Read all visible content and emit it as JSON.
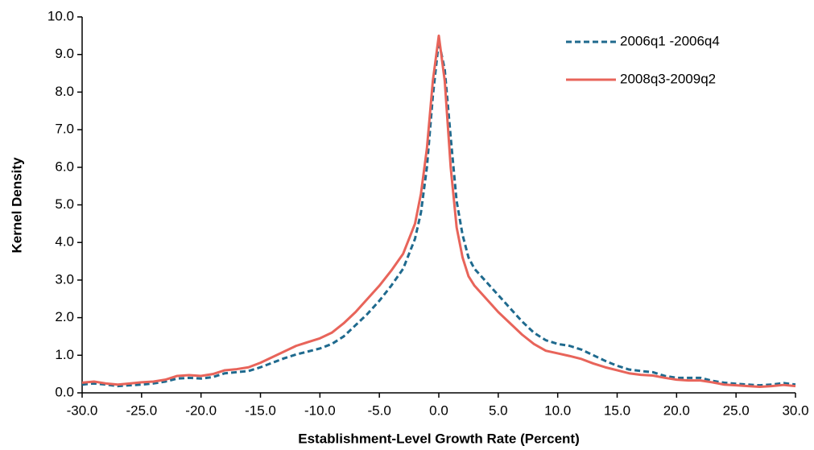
{
  "chart_data": {
    "type": "line",
    "x_label": "Establishment-Level Growth Rate (Percent)",
    "y_label": "Kernel Density",
    "x": [
      -30,
      -29,
      -28,
      -27,
      -26,
      -25,
      -24,
      -23,
      -22,
      -21,
      -20,
      -19,
      -18,
      -17,
      -16,
      -15,
      -14,
      -13,
      -12,
      -11,
      -10,
      -9,
      -8,
      -7,
      -6,
      -5,
      -4,
      -3,
      -2,
      -1.5,
      -1,
      -0.5,
      0,
      0.5,
      1,
      1.5,
      2,
      2.5,
      3,
      4,
      5,
      6,
      7,
      8,
      9,
      10,
      11,
      12,
      13,
      14,
      15,
      16,
      17,
      18,
      19,
      20,
      21,
      22,
      23,
      24,
      25,
      26,
      27,
      28,
      29,
      30
    ],
    "series": [
      {
        "name": "2006q1 -2006q4",
        "color": "#1f6a8e",
        "style": "dashed",
        "values": [
          0.22,
          0.25,
          0.22,
          0.18,
          0.2,
          0.22,
          0.25,
          0.3,
          0.38,
          0.4,
          0.38,
          0.42,
          0.52,
          0.55,
          0.58,
          0.68,
          0.8,
          0.92,
          1.02,
          1.1,
          1.18,
          1.3,
          1.5,
          1.8,
          2.1,
          2.45,
          2.85,
          3.3,
          4.1,
          4.8,
          6.0,
          7.9,
          9.35,
          8.6,
          6.8,
          5.1,
          4.2,
          3.6,
          3.3,
          2.95,
          2.6,
          2.25,
          1.9,
          1.6,
          1.4,
          1.3,
          1.25,
          1.15,
          1.0,
          0.85,
          0.72,
          0.62,
          0.58,
          0.55,
          0.45,
          0.4,
          0.4,
          0.4,
          0.32,
          0.27,
          0.24,
          0.22,
          0.2,
          0.22,
          0.26,
          0.22
        ]
      },
      {
        "name": "2008q3-2009q2",
        "color": "#e8645a",
        "style": "solid",
        "values": [
          0.27,
          0.3,
          0.25,
          0.22,
          0.25,
          0.28,
          0.3,
          0.35,
          0.45,
          0.47,
          0.45,
          0.5,
          0.6,
          0.63,
          0.68,
          0.8,
          0.95,
          1.1,
          1.25,
          1.35,
          1.45,
          1.6,
          1.85,
          2.15,
          2.5,
          2.85,
          3.25,
          3.7,
          4.5,
          5.3,
          6.5,
          8.3,
          9.5,
          8.3,
          6.0,
          4.4,
          3.6,
          3.1,
          2.85,
          2.5,
          2.15,
          1.85,
          1.55,
          1.3,
          1.12,
          1.05,
          0.98,
          0.9,
          0.78,
          0.68,
          0.6,
          0.52,
          0.48,
          0.46,
          0.4,
          0.35,
          0.33,
          0.33,
          0.28,
          0.22,
          0.2,
          0.18,
          0.16,
          0.18,
          0.21,
          0.18
        ]
      }
    ],
    "xlim": [
      -30,
      30
    ],
    "ylim": [
      0,
      10
    ],
    "xticks": [
      {
        "value": -30,
        "label": "-30.0"
      },
      {
        "value": -25,
        "label": "-25.0"
      },
      {
        "value": -20,
        "label": "-20.0"
      },
      {
        "value": -15,
        "label": "-15.0"
      },
      {
        "value": -10,
        "label": "-10.0"
      },
      {
        "value": -5,
        "label": "-5.0"
      },
      {
        "value": 0,
        "label": "0.0"
      },
      {
        "value": 5,
        "label": "5.0"
      },
      {
        "value": 10,
        "label": "10.0"
      },
      {
        "value": 15,
        "label": "15.0"
      },
      {
        "value": 20,
        "label": "20.0"
      },
      {
        "value": 25,
        "label": "25.0"
      },
      {
        "value": 30,
        "label": "30.0"
      }
    ],
    "yticks": [
      {
        "value": 0,
        "label": "0.0"
      },
      {
        "value": 1,
        "label": "1.0"
      },
      {
        "value": 2,
        "label": "2.0"
      },
      {
        "value": 3,
        "label": "3.0"
      },
      {
        "value": 4,
        "label": "4.0"
      },
      {
        "value": 5,
        "label": "5.0"
      },
      {
        "value": 6,
        "label": "6.0"
      },
      {
        "value": 7,
        "label": "7.0"
      },
      {
        "value": 8,
        "label": "8.0"
      },
      {
        "value": 9,
        "label": "9.0"
      },
      {
        "value": 10,
        "label": "10.0"
      }
    ],
    "grid": false,
    "legend": "top-right"
  }
}
